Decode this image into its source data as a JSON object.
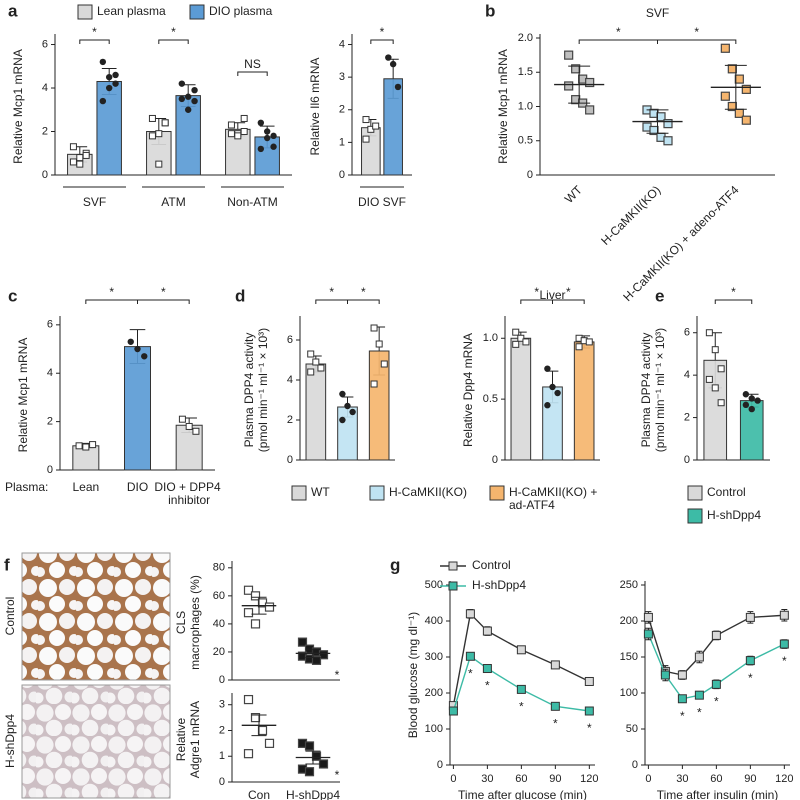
{
  "chart_data": [
    {
      "type": "bar",
      "label": "a",
      "ylabel": "Relative Mcp1 mRNA",
      "categories": [
        "SVF",
        "ATM",
        "Non-ATM"
      ],
      "series": [
        {
          "name": "Lean plasma",
          "color": "#d9d9d9",
          "values": [
            0.95,
            2.0,
            2.1
          ],
          "errors": [
            0.35,
            0.6,
            0.3
          ],
          "points": [
            [
              0.6,
              0.8,
              1.0,
              1.3,
              0.5,
              0.9
            ],
            [
              2.6,
              1.9,
              2.4,
              1.8,
              0.5,
              2.4
            ],
            [
              2.3,
              1.9,
              2.6,
              1.9,
              1.8,
              2.0
            ]
          ]
        },
        {
          "name": "DIO plasma",
          "color": "#5b9bd5",
          "values": [
            4.3,
            3.65,
            1.75
          ],
          "errors": [
            0.6,
            0.5,
            0.5
          ],
          "points": [
            [
              5.2,
              4.5,
              4.2,
              3.4,
              4.0,
              4.6
            ],
            [
              4.2,
              3.6,
              3.4,
              3.5,
              3.0,
              3.9
            ],
            [
              2.4,
              1.7,
              1.3,
              1.2,
              2.0,
              1.8
            ]
          ]
        }
      ],
      "ylim": [
        0,
        6.3
      ],
      "yticks": [
        0,
        2,
        4,
        6
      ],
      "annotations": [
        "*",
        "*",
        "NS"
      ]
    },
    {
      "type": "bar",
      "ylabel": "Relative Il6 mRNA",
      "categories": [
        "DIO SVF"
      ],
      "series": [
        {
          "color": "#d9d9d9",
          "values": [
            1.45
          ],
          "errors": [
            0.25
          ],
          "points": [
            [
              1.7,
              1.4,
              1.5,
              1.1
            ]
          ]
        },
        {
          "color": "#5b9bd5",
          "values": [
            2.95
          ],
          "errors": [
            0.6
          ],
          "points": [
            [
              3.6,
              3.4,
              2.7
            ]
          ]
        }
      ],
      "ylim": [
        0,
        4.2
      ],
      "yticks": [
        0,
        1,
        2,
        3,
        4
      ],
      "annotations": [
        "*"
      ]
    },
    {
      "type": "dot",
      "label": "b",
      "title": "SVF",
      "ylabel": "Relative Mcp1 mRNA",
      "categories": [
        "WT",
        "H-CaMKII(KO)",
        "H-CaMKII(KO) + adeno-ATF4"
      ],
      "colors": [
        "#bfbfbf",
        "#bfe3f2",
        "#f5b56e"
      ],
      "values": [
        1.32,
        0.78,
        1.28
      ],
      "errors": [
        0.27,
        0.17,
        0.32
      ],
      "points": [
        [
          1.75,
          1.55,
          1.4,
          1.35,
          1.3,
          1.1,
          1.05,
          0.95
        ],
        [
          0.95,
          0.9,
          0.85,
          0.75,
          0.7,
          0.65,
          0.55,
          0.5
        ],
        [
          1.85,
          1.55,
          1.4,
          1.25,
          1.15,
          1.0,
          0.9,
          0.8
        ]
      ],
      "ylim": [
        0,
        2.0
      ],
      "yticks": [
        0,
        0.5,
        {
          "value": 1,
          "label": "1.0"
        },
        1.5,
        {
          "value": 2,
          "label": "2.0"
        }
      ],
      "annotations": [
        "*",
        "*"
      ]
    },
    {
      "type": "bar",
      "label": "c",
      "ylabel": "Relative Mcp1 mRNA",
      "xlabel": "Plasma:",
      "categories": [
        "Lean",
        "DIO",
        "DIO + DPP4 inhibitor"
      ],
      "colors": [
        "#d9d9d9",
        "#5b9bd5",
        "#d9d9d9"
      ],
      "values": [
        1.0,
        5.1,
        1.85
      ],
      "errors": [
        0.1,
        0.7,
        0.3
      ],
      "points": [
        [
          1.0,
          0.95,
          1.05
        ],
        [
          5.3,
          5.0,
          4.7
        ],
        [
          2.1,
          1.8,
          1.6
        ]
      ],
      "ylim": [
        0,
        6.2
      ],
      "yticks": [
        0,
        2,
        4,
        6
      ],
      "annotations": [
        "*",
        "*"
      ]
    },
    {
      "type": "bar",
      "label": "d",
      "ylabel": [
        "Plasma DPP4 activity",
        "(pmol min⁻¹ ml⁻¹ × 10³)"
      ],
      "legend": "bottom",
      "categories": [
        "WT",
        "H-CaMKII(KO)",
        "H-CaMKII(KO) + ad-ATF4"
      ],
      "colors": [
        "#d9d9d9",
        "#bfe3f2",
        "#f5b56e"
      ],
      "values": [
        4.8,
        2.65,
        5.45
      ],
      "errors": [
        0.4,
        0.5,
        1.2
      ],
      "points": [
        [
          5.3,
          4.9,
          4.6,
          4.4
        ],
        [
          3.3,
          2.7,
          2.4,
          2.0
        ],
        [
          6.6,
          5.8,
          4.8,
          3.8
        ]
      ],
      "ylim": [
        0,
        7
      ],
      "yticks": [
        0,
        2,
        4,
        6
      ],
      "annotations": [
        "*",
        "*"
      ]
    },
    {
      "type": "bar",
      "title": "Liver",
      "ylabel": "Relative Dpp4 mRNA",
      "colors": [
        "#d9d9d9",
        "#bfe3f2",
        "#f5b56e"
      ],
      "values": [
        1.0,
        0.6,
        0.97
      ],
      "errors": [
        0.05,
        0.13,
        0.05
      ],
      "points": [
        [
          1.05,
          1.0,
          0.97,
          0.95
        ],
        [
          0.75,
          0.6,
          0.55,
          0.45
        ],
        [
          1.0,
          0.98,
          0.97,
          0.93
        ]
      ],
      "ylim": [
        0,
        1.15
      ],
      "yticks": [
        0,
        0.5,
        {
          "value": 1,
          "label": "1.0"
        }
      ],
      "annotations": [
        "*",
        "*"
      ]
    },
    {
      "type": "bar",
      "label": "e",
      "ylabel": [
        "Plasma DPP4 activity",
        "(pmol min⁻¹ ml⁻¹ × 10³)"
      ],
      "legend": "bottom",
      "categories": [
        "Control",
        "H-shDpp4"
      ],
      "colors": [
        "#d9d9d9",
        "#3dbba6"
      ],
      "values": [
        4.7,
        2.8
      ],
      "errors": [
        1.3,
        0.3
      ],
      "points": [
        [
          6.0,
          5.2,
          4.3,
          3.8,
          3.4,
          2.7
        ],
        [
          3.1,
          2.9,
          2.8,
          2.6,
          2.4
        ]
      ],
      "ylim": [
        0,
        6.6
      ],
      "yticks": [
        0,
        2,
        4,
        6
      ],
      "annotations": [
        "*"
      ]
    },
    {
      "type": "dot",
      "label": "f",
      "image_labels": [
        "Control",
        "H-shDpp4"
      ],
      "ylabel": [
        "CLS",
        "macrophages (%)"
      ],
      "colors": [
        "#ffffff",
        "#1a1a1a"
      ],
      "values": [
        53,
        19
      ],
      "errors": [
        6,
        3
      ],
      "points": [
        [
          64,
          60,
          55,
          52,
          48,
          40
        ],
        [
          27,
          22,
          20,
          18,
          17,
          15,
          14
        ]
      ],
      "ylim": [
        0,
        82
      ],
      "yticks": [
        0,
        20,
        40,
        60,
        80
      ],
      "annotations": [
        "*"
      ]
    },
    {
      "type": "dot",
      "ylabel": [
        "Relative",
        "Adgre1 mRNA"
      ],
      "categories": [
        "Con",
        "H-shDpp4"
      ],
      "colors": [
        "#ffffff",
        "#1a1a1a"
      ],
      "values": [
        2.2,
        0.95
      ],
      "errors": [
        0.4,
        0.25
      ],
      "points": [
        [
          3.2,
          2.5,
          2.0,
          1.5,
          1.1
        ],
        [
          1.5,
          1.4,
          1.0,
          0.7,
          0.5,
          0.4
        ]
      ],
      "ylim": [
        0,
        3.3
      ],
      "yticks": [
        0,
        1,
        2,
        3
      ],
      "annotations": [
        "*"
      ]
    },
    {
      "type": "line",
      "label": "g",
      "ylabel": "Blood glucose (mg dl⁻¹)",
      "xlabel": "Time after glucose (min)",
      "x": [
        0,
        15,
        30,
        60,
        90,
        120
      ],
      "series": [
        {
          "name": "Control",
          "color": "#333333",
          "marker_color": "#d9d9d9",
          "values": [
            165,
            420,
            372,
            320,
            278,
            232
          ],
          "errors": [
            10,
            12,
            12,
            10,
            10,
            8
          ]
        },
        {
          "name": "H-shDpp4",
          "color": "#3dbba6",
          "marker_color": "#3dbba6",
          "values": [
            150,
            302,
            268,
            210,
            163,
            150
          ],
          "errors": [
            10,
            8,
            8,
            8,
            8,
            8
          ]
        }
      ],
      "xlim": [
        -3,
        125
      ],
      "xticks": [
        0,
        30,
        60,
        90,
        120
      ],
      "ylim": [
        0,
        500
      ],
      "yticks": [
        0,
        100,
        200,
        300,
        400,
        500
      ],
      "annotations": [
        "*",
        "*",
        "*",
        "*",
        "*"
      ]
    },
    {
      "type": "line",
      "xlabel": "Time after insulin (min)",
      "x": [
        0,
        15,
        30,
        45,
        60,
        90,
        120
      ],
      "series": [
        {
          "color": "#333333",
          "marker_color": "#d9d9d9",
          "values": [
            205,
            130,
            125,
            150,
            180,
            205,
            208
          ],
          "errors": [
            8,
            8,
            6,
            8,
            6,
            8,
            8
          ]
        },
        {
          "color": "#3dbba6",
          "marker_color": "#3dbba6",
          "values": [
            182,
            125,
            92,
            97,
            112,
            145,
            168
          ],
          "errors": [
            8,
            8,
            5,
            5,
            6,
            6,
            6
          ]
        }
      ],
      "xlim": [
        -3,
        125
      ],
      "xticks": [
        0,
        30,
        60,
        90,
        120
      ],
      "ylim": [
        0,
        250
      ],
      "yticks": [
        0,
        50,
        100,
        150,
        200,
        250
      ],
      "annotations": [
        "*",
        "*",
        "*",
        "*",
        "*"
      ]
    }
  ]
}
